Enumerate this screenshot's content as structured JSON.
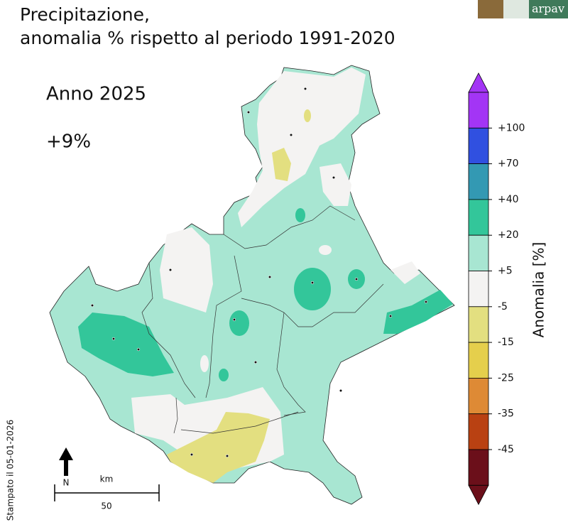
{
  "header": {
    "title_line1": "Precipitazione,",
    "title_line2": "anomalia % rispetto al periodo 1991-2020",
    "logo": "arpav"
  },
  "map": {
    "year": "Anno 2025",
    "mean_anomaly": "+9%"
  },
  "colorbar": {
    "label": "Anomalia [%]",
    "ticks": [
      "+100",
      "+70",
      "+40",
      "+20",
      "+5",
      "-5",
      "-15",
      "-25",
      "-35",
      "-45"
    ],
    "colors": [
      "#a335f5",
      "#3050e0",
      "#3399b3",
      "#33c69a",
      "#a8e6d2",
      "#f4f3f2",
      "#e3df80",
      "#e5cf4c",
      "#de8a35",
      "#b94112",
      "#6b0f1a"
    ]
  },
  "scale": {
    "north": "N",
    "unit": "km",
    "distance": "50"
  },
  "footer": {
    "printed": "Stampato il 05-01-2026"
  }
}
